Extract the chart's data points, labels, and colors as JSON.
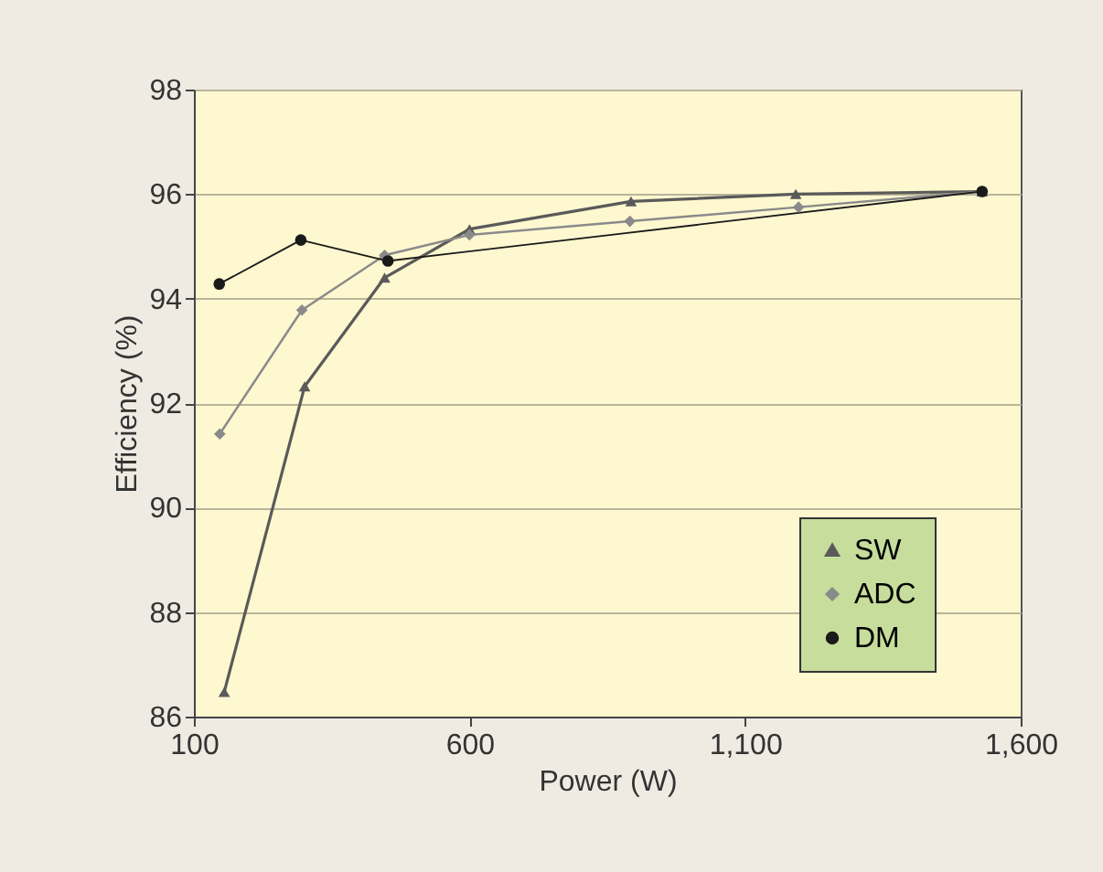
{
  "chart_data": {
    "type": "line",
    "xlabel": "Power (W)",
    "ylabel": "Efficiency (%)",
    "xlim": [
      100,
      1600
    ],
    "xticks": [
      100,
      600,
      {
        "value": 1100,
        "label": "1,100"
      },
      {
        "value": 1600,
        "label": "1,600"
      }
    ],
    "ylim": [
      86,
      98
    ],
    "yticks": [
      86,
      88,
      90,
      92,
      94,
      96,
      98
    ],
    "grid": "y",
    "legend": "bottom right",
    "line_style": "solid",
    "series": [
      {
        "name": "SW",
        "color": "#5a5a5a",
        "marker": "triangle",
        "x": [
          155,
          301,
          446,
          600,
          893,
          1192,
          1530
        ],
        "values": [
          86.47,
          92.32,
          94.4,
          95.33,
          95.86,
          96.0,
          96.05
        ]
      },
      {
        "name": "ADC",
        "color": "#8a8a8a",
        "marker": "diamond",
        "x": [
          147,
          296,
          446,
          600,
          891,
          1197,
          1530
        ],
        "values": [
          91.41,
          93.78,
          94.83,
          95.22,
          95.48,
          95.75,
          96.05
        ]
      },
      {
        "name": "DM",
        "color": "#1a1a1a",
        "marker": "circle",
        "x": [
          146,
          294,
          452,
          1530
        ],
        "values": [
          94.28,
          95.12,
          94.72,
          96.05
        ]
      }
    ]
  }
}
